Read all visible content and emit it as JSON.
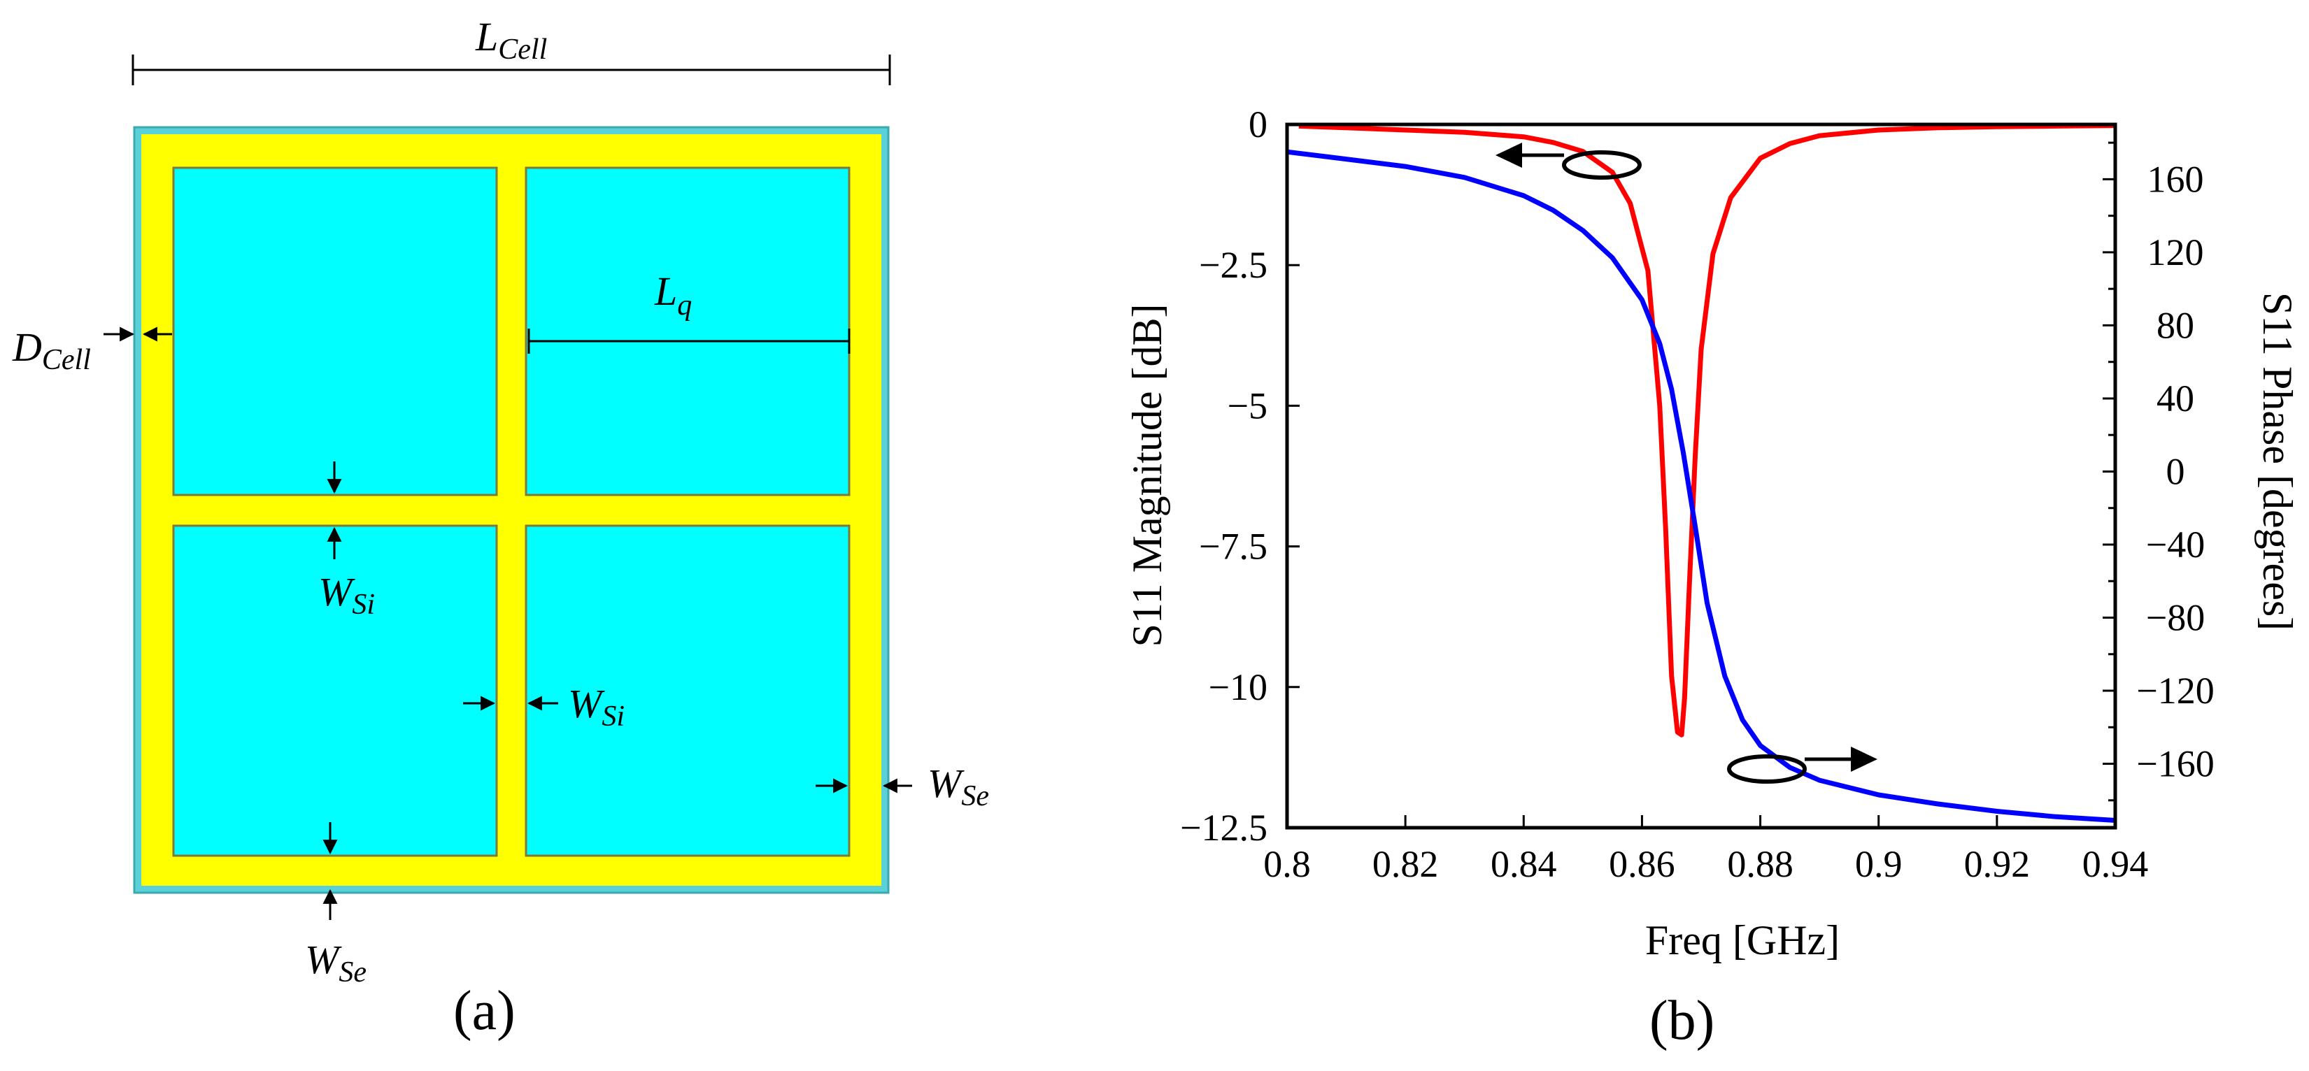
{
  "panel_a": {
    "caption": "(a)",
    "labels": {
      "l_cell": {
        "main": "L",
        "sub": "Cell"
      },
      "d_cell": {
        "main": "D",
        "sub": "Cell"
      },
      "l_q": {
        "main": "L",
        "sub": "q"
      },
      "w_si_1": {
        "main": "W",
        "sub": "Si"
      },
      "w_si_2": {
        "main": "W",
        "sub": "Si"
      },
      "w_se_1": {
        "main": "W",
        "sub": "Se"
      },
      "w_se_2": {
        "main": "W",
        "sub": "Se"
      }
    },
    "colors": {
      "substrate": "#5ad0d8",
      "frame": "#ffff00",
      "patch": "#00ffff",
      "patch_outline": "#7a7a3a"
    }
  },
  "panel_b": {
    "caption": "(b)"
  },
  "chart_data": {
    "type": "line",
    "title": "",
    "xlabel": "Freq [GHz]",
    "ylabel": "S11 Magnitude [dB]",
    "y2label": "S11 Phase [degrees]",
    "xlim": [
      0.8,
      0.94
    ],
    "ylim": [
      -12.5,
      0
    ],
    "y2lim": [
      -195,
      190
    ],
    "x_ticks": [
      0.8,
      0.82,
      0.84,
      0.86,
      0.88,
      0.9,
      0.92,
      0.94
    ],
    "x_tick_labels": [
      "0.8",
      "0.82",
      "0.84",
      "0.86",
      "0.88",
      "0.9",
      "0.92",
      "0.94"
    ],
    "y_ticks": [
      0,
      -2.5,
      -5,
      -7.5,
      -10,
      -12.5
    ],
    "y_tick_labels": [
      "0",
      "-2.5",
      "-5",
      "-7.5",
      "-10",
      "-12.5"
    ],
    "y2_ticks": [
      160,
      120,
      80,
      40,
      0,
      -40,
      -80,
      -120,
      -160
    ],
    "y2_tick_labels": [
      "160",
      "120",
      "80",
      "40",
      "0",
      "-40",
      "-80",
      "-120",
      "-160"
    ],
    "series": [
      {
        "name": "S11 Magnitude",
        "axis": "left",
        "color": "#ff0000",
        "x": [
          0.802,
          0.81,
          0.82,
          0.83,
          0.84,
          0.845,
          0.85,
          0.855,
          0.858,
          0.861,
          0.863,
          0.864,
          0.865,
          0.866,
          0.8667,
          0.8672,
          0.868,
          0.869,
          0.87,
          0.872,
          0.875,
          0.88,
          0.885,
          0.89,
          0.9,
          0.91,
          0.92,
          0.93,
          0.94
        ],
        "y": [
          -0.03,
          -0.06,
          -0.1,
          -0.14,
          -0.22,
          -0.32,
          -0.48,
          -0.85,
          -1.4,
          -2.6,
          -5.0,
          -7.2,
          -9.8,
          -10.8,
          -10.85,
          -10.2,
          -8.2,
          -5.9,
          -4.0,
          -2.3,
          -1.3,
          -0.6,
          -0.34,
          -0.2,
          -0.1,
          -0.06,
          -0.04,
          -0.03,
          -0.02
        ]
      },
      {
        "name": "S11 Phase",
        "axis": "right",
        "color": "#0000ff",
        "x": [
          0.8,
          0.81,
          0.82,
          0.83,
          0.84,
          0.845,
          0.85,
          0.855,
          0.86,
          0.863,
          0.865,
          0.867,
          0.869,
          0.871,
          0.874,
          0.877,
          0.88,
          0.885,
          0.89,
          0.9,
          0.91,
          0.92,
          0.93,
          0.94
        ],
        "y": [
          175,
          171,
          167,
          161,
          151,
          143,
          132,
          117,
          94,
          70,
          45,
          10,
          -30,
          -72,
          -112,
          -136,
          -150,
          -162,
          -169,
          -177,
          -182,
          -186,
          -189,
          -191
        ]
      }
    ],
    "annotations": [
      {
        "type": "ellipse-arrow",
        "points_to": "left axis",
        "series": "S11 Magnitude"
      },
      {
        "type": "ellipse-arrow",
        "points_to": "right axis",
        "series": "S11 Phase"
      }
    ]
  }
}
